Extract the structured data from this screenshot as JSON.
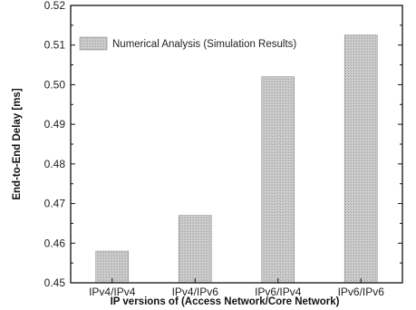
{
  "chart_data": {
    "type": "bar",
    "title": "",
    "xlabel": "IP versions of (Access Network/Core Network)",
    "ylabel": "End-to-End Delay [ms]",
    "categories": [
      "IPv4/IPv4",
      "IPv4/IPv6",
      "IPv6/IPv4",
      "IPv6/IPv6"
    ],
    "series": [
      {
        "name": "Numerical Analysis (Simulation Results)",
        "values": [
          0.458,
          0.467,
          0.502,
          0.5125
        ]
      }
    ],
    "ylim": [
      0.45,
      0.52
    ],
    "yticks": [
      "0.45",
      "0.46",
      "0.47",
      "0.48",
      "0.49",
      "0.50",
      "0.51",
      "0.52"
    ],
    "legend_position": "top-left",
    "grid": false,
    "bar_color": "#c4c4c4"
  }
}
